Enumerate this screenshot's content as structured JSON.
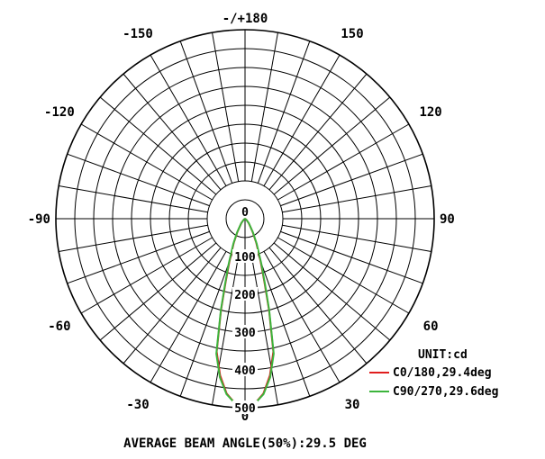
{
  "chart_data": {
    "type": "polar",
    "unit_label": "UNIT:cd",
    "footer": "AVERAGE BEAM ANGLE(50%):29.5 DEG",
    "angle_ticks": [
      {
        "angle": 180,
        "label": "-/+180"
      },
      {
        "angle": 150,
        "label": "150"
      },
      {
        "angle": 120,
        "label": "120"
      },
      {
        "angle": 90,
        "label": "90"
      },
      {
        "angle": 60,
        "label": "60"
      },
      {
        "angle": 30,
        "label": "30"
      },
      {
        "angle": 0,
        "label": "0"
      },
      {
        "angle": -30,
        "label": "-30"
      },
      {
        "angle": -60,
        "label": "-60"
      },
      {
        "angle": -90,
        "label": "-90"
      },
      {
        "angle": -120,
        "label": "-120"
      },
      {
        "angle": -150,
        "label": "-150"
      }
    ],
    "radial_ticks": [
      "100",
      "200",
      "300",
      "400",
      "500"
    ],
    "r_max": 500,
    "series": [
      {
        "name": "C0/180,29.4deg",
        "color": "#e01e1e",
        "beam_angle_deg": 29.4,
        "points": [
          [
            0,
            500
          ],
          [
            3,
            490
          ],
          [
            6,
            465
          ],
          [
            9,
            420
          ],
          [
            12,
            360
          ],
          [
            14.7,
            250
          ],
          [
            17,
            175
          ],
          [
            20,
            120
          ],
          [
            25,
            70
          ],
          [
            30,
            40
          ],
          [
            40,
            15
          ],
          [
            50,
            5
          ],
          [
            60,
            1
          ]
        ]
      },
      {
        "name": "C90/270,29.6deg",
        "color": "#3cb43c",
        "beam_angle_deg": 29.6,
        "points": [
          [
            0,
            500
          ],
          [
            3,
            490
          ],
          [
            6,
            467
          ],
          [
            9,
            425
          ],
          [
            12,
            365
          ],
          [
            14.8,
            250
          ],
          [
            17,
            180
          ],
          [
            20,
            125
          ],
          [
            25,
            73
          ],
          [
            30,
            42
          ],
          [
            40,
            16
          ],
          [
            50,
            5
          ],
          [
            60,
            1
          ]
        ]
      }
    ]
  }
}
